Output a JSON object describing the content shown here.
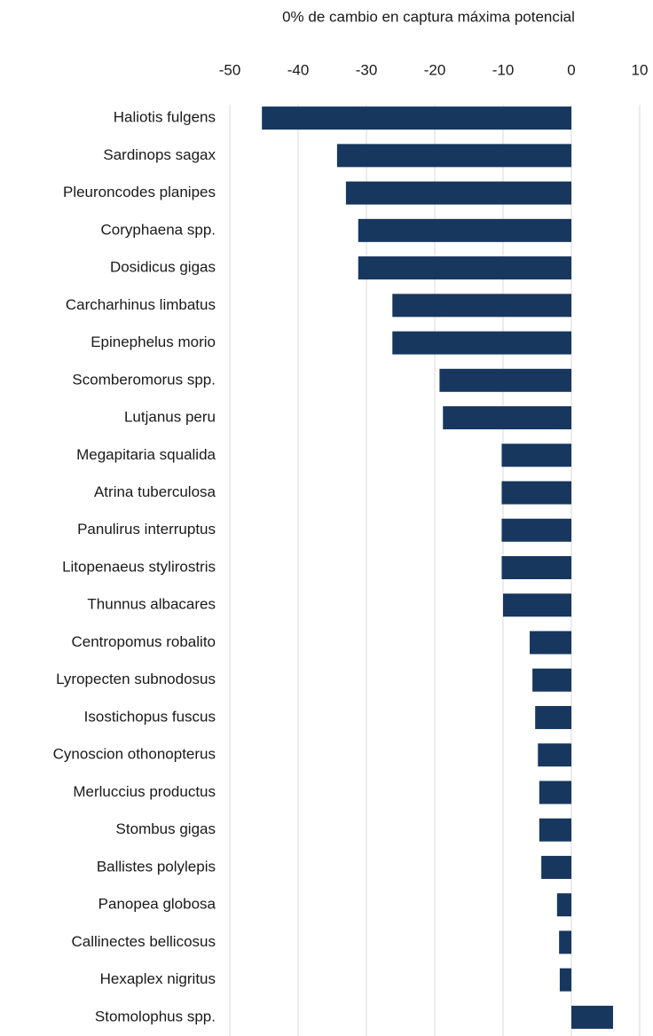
{
  "chart_data": {
    "type": "bar",
    "orientation": "horizontal",
    "xlabel": "0% de cambio en captura máxima potencial",
    "categories": [
      "Haliotis fulgens",
      "Sardinops sagax",
      "Pleuroncodes planipes",
      "Coryphaena spp.",
      "Dosidicus gigas",
      "Carcharhinus limbatus",
      "Epinephelus morio",
      "Scomberomorus spp.",
      "Lutjanus peru",
      "Megapitaria squalida",
      "Atrina tuberculosa",
      "Panulirus interruptus",
      "Litopenaeus stylirostris",
      "Thunnus albacares",
      "Centropomus robalito",
      "Lyropecten subnodosus",
      "Isostichopus fuscus",
      "Cynoscion othonopterus",
      "Merluccius productus",
      "Stombus gigas",
      "Ballistes polylepis",
      "Panopea globosa",
      "Callinectes bellicosus",
      "Hexaplex nigritus",
      "Stomolophus spp."
    ],
    "values": [
      -45.3,
      -34.3,
      -33,
      -31.2,
      -31.2,
      -26.2,
      -26.2,
      -19.3,
      -18.8,
      -10.2,
      -10.2,
      -10.2,
      -10.2,
      -10,
      -6.1,
      -5.7,
      -5.3,
      -4.9,
      -4.7,
      -4.7,
      -4.4,
      -2.1,
      -1.8,
      -1.7,
      6.1
    ],
    "color": "#17375e",
    "xlim": [
      -50,
      10
    ],
    "xticks": [
      -50,
      -40,
      -30,
      -20,
      -10,
      0,
      10
    ],
    "grid": true
  }
}
